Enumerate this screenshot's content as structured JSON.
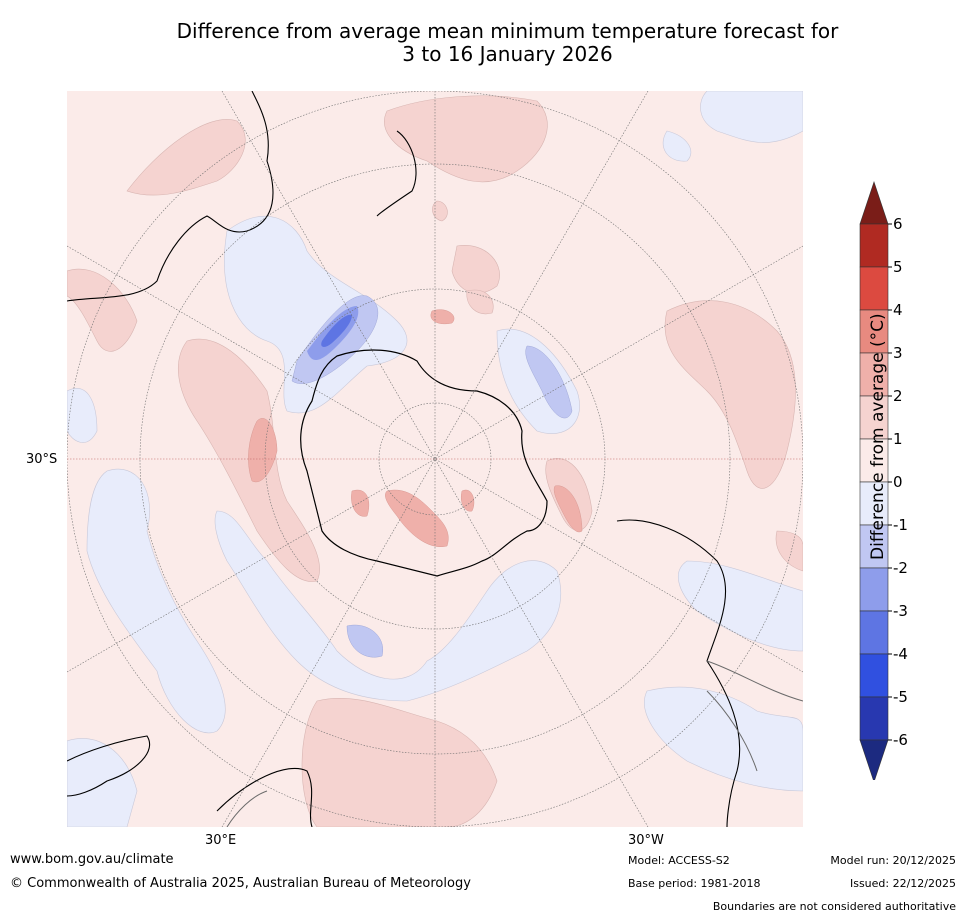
{
  "title_line1": "Difference from average mean minimum temperature forecast for",
  "title_line2": "3 to 16 January 2026",
  "map_labels": {
    "lat_30s": "30°S",
    "lon_30e": "30°E",
    "lon_30w": "30°W"
  },
  "colorbar": {
    "label": "Difference from average (°C)",
    "ticks": [
      "6",
      "5",
      "4",
      "3",
      "2",
      "1",
      "0",
      "-1",
      "-2",
      "-3",
      "-4",
      "-5",
      "-6"
    ],
    "colors": {
      "gt6": "#7a1d18",
      "c5_6": "#b02a22",
      "c4_5": "#dc4a40",
      "c3_4": "#e88a80",
      "c2_3": "#efb0aa",
      "c1_2": "#f5d3d0",
      "c0_1": "#fbebe9",
      "m0_1": "#e8ecfb",
      "m1_2": "#c0c7f2",
      "m2_3": "#8e9deb",
      "m3_4": "#5e75e3",
      "m4_5": "#3050e0",
      "m5_6": "#2838b0",
      "lt6": "#1c2a80"
    }
  },
  "footer": {
    "website": "www.bom.gov.au/climate",
    "copyright": "© Commonwealth of Australia 2025, Australian Bureau of Meteorology",
    "model": "Model: ACCESS-S2",
    "base_period": "Base period: 1981-2018",
    "model_run": "Model run: 20/12/2025",
    "issued": "Issued: 22/12/2025",
    "disclaimer": "Boundaries are not considered authoritative"
  }
}
